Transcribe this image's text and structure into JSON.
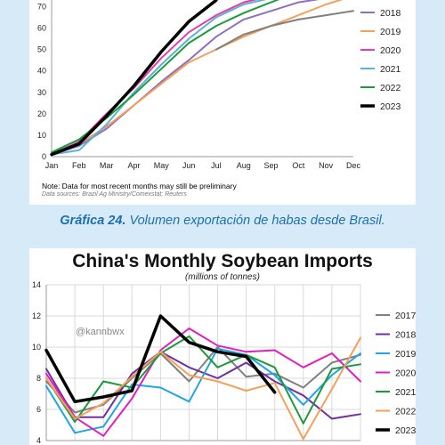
{
  "caption": {
    "prefix": "Gráfica 24.",
    "text": " Volumen exportación de habas desde Brasil."
  },
  "chart_data": [
    {
      "type": "line",
      "title": "",
      "note": "Note: Data for most recent months may still be preliminary",
      "source": "Data sources: Brazil Ag Ministry/Comexstat; Reuters",
      "x": [
        "Jan",
        "Feb",
        "Mar",
        "Apr",
        "May",
        "Jun",
        "Jul",
        "Aug",
        "Sep",
        "Oct",
        "Nov",
        "Dec"
      ],
      "yticks": [
        0,
        10,
        20,
        30,
        40,
        50,
        60,
        70
      ],
      "ylim": [
        0,
        76
      ],
      "legend_position": "right",
      "series": [
        {
          "name": "2018",
          "color": "#8e6fc0",
          "width": 2,
          "values": [
            1,
            5,
            13,
            24,
            35,
            45,
            56,
            64,
            68,
            72,
            74,
            75
          ]
        },
        {
          "name": "2019",
          "color": "#f5a05a",
          "width": 2,
          "values": [
            1,
            6,
            14,
            24,
            34,
            44,
            50,
            56,
            61,
            66,
            71,
            75
          ]
        },
        {
          "name": "2020",
          "color": "#e83ca8",
          "width": 2,
          "values": [
            1,
            7,
            20,
            32,
            46,
            58,
            66,
            72,
            75,
            77,
            78,
            78
          ]
        },
        {
          "name": "2021",
          "color": "#5ab4d8",
          "width": 2,
          "values": [
            1,
            3,
            15,
            30,
            43,
            55,
            65,
            71,
            74,
            76,
            77,
            78
          ]
        },
        {
          "name": "2022",
          "color": "#1e9a3c",
          "width": 2,
          "values": [
            2,
            8,
            18,
            29,
            41,
            53,
            61,
            67,
            72,
            77,
            null,
            null
          ]
        },
        {
          "name": "2023",
          "color": "#000000",
          "width": 3.5,
          "values": [
            1,
            6,
            19,
            33,
            49,
            63,
            73,
            null,
            null,
            null,
            null,
            null
          ]
        },
        {
          "name": "",
          "color": "#808080",
          "width": 2,
          "values": [
            null,
            null,
            null,
            null,
            null,
            null,
            50,
            57,
            61,
            64,
            66,
            68
          ]
        }
      ]
    },
    {
      "type": "line",
      "title": "China's Monthly Soybean Imports",
      "subtitle": "(millions of tonnes)",
      "watermark": "@kannbwx",
      "yticks": [
        4,
        6,
        8,
        10,
        12,
        14
      ],
      "ylim": [
        4,
        14
      ],
      "legend_position": "right",
      "series": [
        {
          "name": "2017",
          "color": "#808080",
          "width": 2,
          "values": [
            7.8,
            5.8,
            6.3,
            8.0,
            9.6,
            7.8,
            10.0,
            8.1,
            8.3,
            7.4,
            9.0,
            9.5
          ]
        },
        {
          "name": "2018",
          "color": "#7030a0",
          "width": 2,
          "values": [
            8.6,
            5.5,
            5.5,
            8.3,
            9.7,
            8.7,
            8.0,
            9.0,
            7.8,
            6.9,
            5.4,
            5.7
          ]
        },
        {
          "name": "2019",
          "color": "#1ea7e0",
          "width": 2,
          "values": [
            7.5,
            4.5,
            4.9,
            7.6,
            7.4,
            6.5,
            9.9,
            9.5,
            8.2,
            6.3,
            8.2,
            9.6
          ]
        },
        {
          "name": "2020",
          "color": "#e01fbf",
          "width": 2,
          "values": [
            8.3,
            5.5,
            4.3,
            6.7,
            9.8,
            11.2,
            10.1,
            9.7,
            9.8,
            8.7,
            9.6,
            7.8
          ]
        },
        {
          "name": "2021",
          "color": "#1e9a3c",
          "width": 2,
          "values": [
            8.0,
            5.2,
            7.8,
            7.4,
            9.6,
            10.7,
            8.7,
            9.5,
            8.7,
            5.1,
            8.6,
            8.9
          ]
        },
        {
          "name": "2022",
          "color": "#f5a05a",
          "width": 2,
          "values": [
            8.0,
            5.4,
            6.4,
            8.1,
            9.7,
            8.2,
            7.8,
            7.2,
            7.7,
            4.1,
            7.3,
            10.6
          ]
        },
        {
          "name": "2023",
          "color": "#000000",
          "width": 3.5,
          "values": [
            9.8,
            6.5,
            6.8,
            7.2,
            12.0,
            10.3,
            9.7,
            9.4,
            7.1,
            null,
            null,
            null
          ]
        }
      ]
    }
  ]
}
